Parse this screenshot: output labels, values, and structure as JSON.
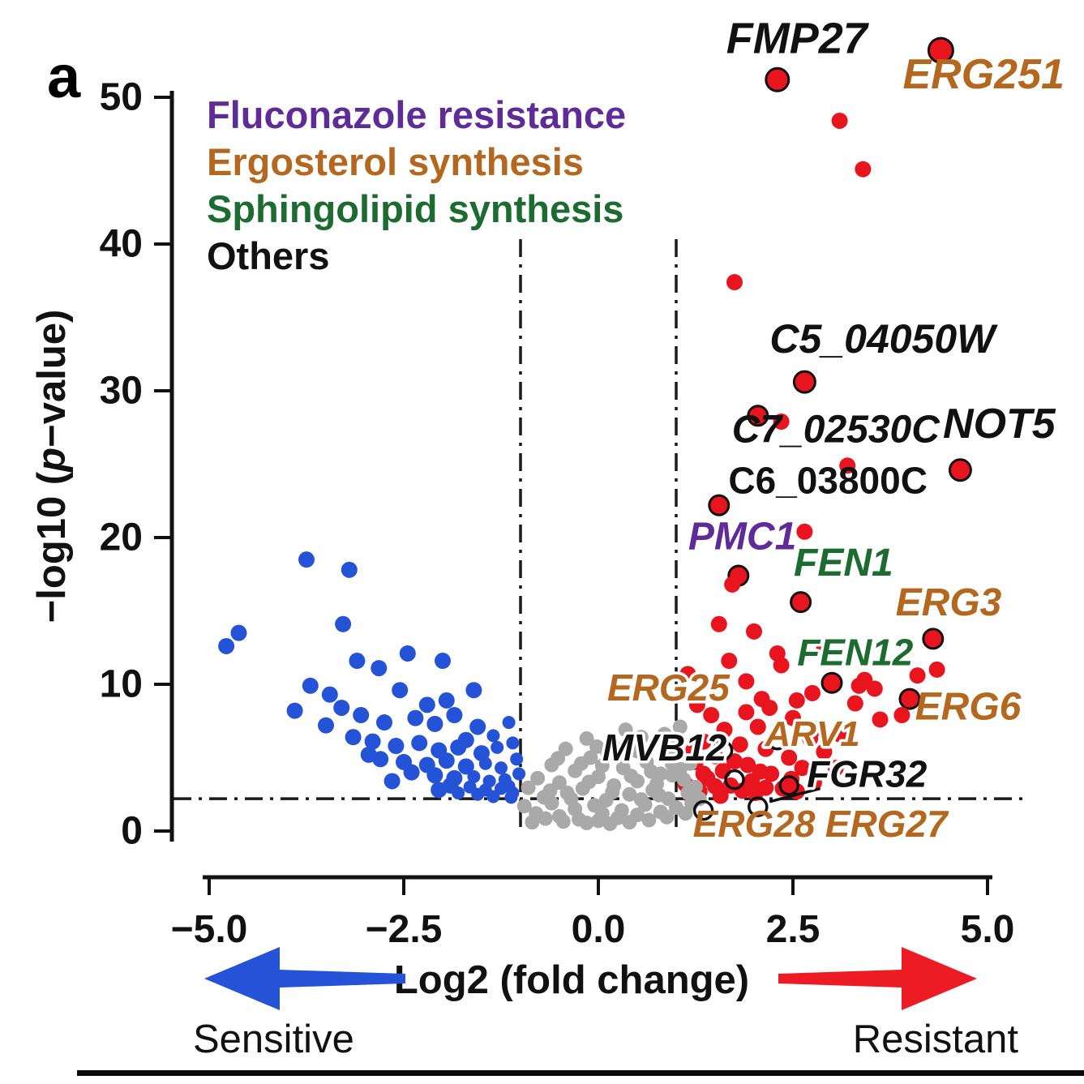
{
  "page": {
    "panel_label": "a"
  },
  "chart_data": {
    "type": "scatter",
    "variant": "volcano",
    "title": "",
    "xlabel": "Log2 (fold change)",
    "ylabel": {
      "prefix": "−log10 (",
      "italic": "p",
      "suffix": "−value)"
    },
    "xlim": [
      -5.5,
      5.5
    ],
    "ylim": [
      -1,
      54
    ],
    "grid": false,
    "x_ticks": [
      {
        "value": -5,
        "label": "−5.0"
      },
      {
        "value": -2.5,
        "label": "−2.5"
      },
      {
        "value": 0,
        "label": "0.0"
      },
      {
        "value": 2.5,
        "label": "2.5"
      },
      {
        "value": 5,
        "label": "5.0"
      }
    ],
    "y_ticks": [
      {
        "value": 0,
        "label": "0"
      },
      {
        "value": 10,
        "label": "10"
      },
      {
        "value": 20,
        "label": "20"
      },
      {
        "value": 30,
        "label": "30"
      },
      {
        "value": 40,
        "label": "40"
      },
      {
        "value": 50,
        "label": "50"
      }
    ],
    "thresholds": {
      "x": [
        -1,
        1
      ],
      "y": 2.2
    },
    "legend": [
      {
        "label": "Fluconazole resistance",
        "color": "#5e2b97"
      },
      {
        "label": "Ergosterol synthesis",
        "color": "#b4671e"
      },
      {
        "label": "Sphingolipid synthesis",
        "color": "#1c6b30"
      },
      {
        "label": "Others",
        "color": "#111111"
      }
    ],
    "series": [
      {
        "name": "resistant",
        "color": "#e8141e",
        "points": [
          [
            4.4,
            53.2,
            15,
            1
          ],
          [
            2.3,
            51.2,
            14,
            1
          ],
          [
            3.1,
            48.4
          ],
          [
            3.4,
            45.1
          ],
          [
            1.75,
            37.4
          ],
          [
            2.65,
            30.6,
            13,
            1
          ],
          [
            2.05,
            28.3,
            12,
            1
          ],
          [
            2.35,
            27.9
          ],
          [
            3.2,
            24.9
          ],
          [
            4.65,
            24.6,
            13,
            1
          ],
          [
            1.55,
            22.2,
            12,
            1
          ],
          [
            2.65,
            20.4
          ],
          [
            1.8,
            17.4,
            12,
            1
          ],
          [
            1.72,
            16.8
          ],
          [
            2.6,
            15.6,
            12,
            1
          ],
          [
            1.55,
            14.1
          ],
          [
            2.0,
            13.6
          ],
          [
            4.3,
            13.1,
            12,
            1
          ],
          [
            2.3,
            12.1
          ],
          [
            2.35,
            11.3
          ],
          [
            4.35,
            11.0
          ],
          [
            1.15,
            10.7
          ],
          [
            3.0,
            10.1,
            12,
            1
          ],
          [
            3.42,
            10.3
          ],
          [
            3.55,
            9.7
          ],
          [
            4.0,
            9.0,
            12,
            1
          ],
          [
            3.3,
            8.7
          ],
          [
            2.1,
            9.0
          ],
          [
            2.2,
            8.4
          ],
          [
            1.9,
            8.1
          ],
          [
            2.5,
            7.7
          ],
          [
            3.62,
            7.6
          ],
          [
            2.05,
            7.1
          ],
          [
            1.62,
            6.9
          ],
          [
            2.32,
            6.6
          ],
          [
            2.72,
            6.3
          ],
          [
            1.35,
            6.1
          ],
          [
            1.82,
            5.9
          ],
          [
            2.15,
            5.6
          ],
          [
            2.9,
            5.4
          ],
          [
            1.5,
            5.1
          ],
          [
            2.45,
            5.0
          ],
          [
            1.25,
            4.7
          ],
          [
            1.92,
            4.5
          ],
          [
            2.62,
            4.3
          ],
          [
            1.6,
            4.1
          ],
          [
            2.22,
            3.9
          ],
          [
            1.4,
            3.6
          ],
          [
            1.97,
            3.4
          ],
          [
            2.77,
            3.3
          ],
          [
            1.7,
            3.1
          ],
          [
            2.37,
            2.9
          ],
          [
            1.3,
            2.7
          ],
          [
            2.02,
            2.6
          ],
          [
            1.57,
            2.4
          ],
          [
            1.45,
            7.9
          ],
          [
            1.27,
            8.6
          ],
          [
            2.85,
            7.0
          ],
          [
            3.1,
            6.6
          ],
          [
            2.55,
            8.9
          ],
          [
            2.75,
            9.4
          ],
          [
            1.9,
            10.2
          ],
          [
            1.68,
            11.6
          ],
          [
            2.9,
            12.6
          ],
          [
            1.5,
            3.05
          ],
          [
            1.35,
            3.9
          ],
          [
            1.85,
            2.75
          ],
          [
            2.55,
            2.7
          ],
          [
            2.15,
            2.95
          ],
          [
            1.22,
            5.5
          ],
          [
            1.12,
            3.2
          ],
          [
            1.18,
            2.45
          ],
          [
            2.08,
            4.05
          ],
          [
            2.48,
            3.55
          ],
          [
            1.75,
            4.75
          ],
          [
            3.05,
            4.3
          ],
          [
            3.35,
            9.9
          ],
          [
            4.1,
            10.6
          ],
          [
            3.9,
            7.9
          ]
        ]
      },
      {
        "name": "sensitive",
        "color": "#2553d8",
        "points": [
          [
            -3.75,
            18.5
          ],
          [
            -3.2,
            17.8
          ],
          [
            -4.62,
            13.5
          ],
          [
            -4.78,
            12.6
          ],
          [
            -3.28,
            14.1
          ],
          [
            -3.1,
            11.6
          ],
          [
            -2.82,
            11.1
          ],
          [
            -2.45,
            12.1
          ],
          [
            -2.0,
            11.6
          ],
          [
            -3.7,
            9.9
          ],
          [
            -3.45,
            9.3
          ],
          [
            -2.55,
            9.6
          ],
          [
            -1.6,
            9.6
          ],
          [
            -3.3,
            8.4
          ],
          [
            -3.05,
            7.9
          ],
          [
            -2.75,
            7.4
          ],
          [
            -2.35,
            7.7
          ],
          [
            -2.1,
            7.3
          ],
          [
            -1.85,
            7.9
          ],
          [
            -1.55,
            7.1
          ],
          [
            -1.15,
            7.4,
            8
          ],
          [
            -3.15,
            6.4
          ],
          [
            -2.9,
            6.1
          ],
          [
            -2.6,
            5.8
          ],
          [
            -2.3,
            6.0
          ],
          [
            -2.05,
            5.5
          ],
          [
            -1.8,
            5.7
          ],
          [
            -1.5,
            5.3
          ],
          [
            -1.3,
            5.7,
            8
          ],
          [
            -1.1,
            6.0,
            8
          ],
          [
            -2.8,
            4.9
          ],
          [
            -2.5,
            4.7
          ],
          [
            -2.2,
            4.5
          ],
          [
            -1.95,
            4.8
          ],
          [
            -1.7,
            4.4
          ],
          [
            -1.45,
            4.6,
            8
          ],
          [
            -1.25,
            4.3,
            8
          ],
          [
            -2.4,
            4.0
          ],
          [
            -2.1,
            3.8
          ],
          [
            -1.85,
            3.6
          ],
          [
            -1.6,
            3.7,
            8
          ],
          [
            -1.4,
            3.4,
            8
          ],
          [
            -1.2,
            3.5,
            8
          ],
          [
            -1.9,
            3.1
          ],
          [
            -1.65,
            3.0,
            8
          ],
          [
            -1.45,
            2.8,
            8
          ],
          [
            -1.25,
            2.9,
            8
          ],
          [
            -1.1,
            2.6,
            8
          ],
          [
            -2.65,
            3.4
          ],
          [
            -2.95,
            5.2
          ],
          [
            -3.5,
            7.2
          ],
          [
            -3.9,
            8.2
          ],
          [
            -1.35,
            6.5,
            8
          ],
          [
            -1.7,
            6.2
          ],
          [
            -2.2,
            8.6
          ],
          [
            -1.95,
            8.9
          ],
          [
            -1.05,
            4.9,
            8
          ],
          [
            -1.02,
            3.9,
            8
          ],
          [
            -1.15,
            3.05,
            8
          ],
          [
            -1.55,
            2.5,
            8
          ],
          [
            -1.8,
            2.6,
            8
          ],
          [
            -2.05,
            2.8
          ],
          [
            -1.35,
            2.35,
            8
          ],
          [
            -1.12,
            2.3,
            8
          ]
        ]
      },
      {
        "name": "nonsignificant",
        "color": "#a9a9a9",
        "points": [
          [
            0,
            0.7,
            9
          ],
          [
            0.25,
            0.9,
            9
          ],
          [
            -0.25,
            0.8,
            9
          ],
          [
            0.5,
            1.1,
            9
          ],
          [
            -0.5,
            1.0,
            9
          ],
          [
            0.8,
            1.3,
            9
          ],
          [
            -0.8,
            1.2,
            9
          ],
          [
            1.0,
            1.6,
            9
          ],
          [
            -0.95,
            1.7,
            9
          ],
          [
            0.3,
            1.4,
            9
          ],
          [
            -0.3,
            1.5,
            9
          ],
          [
            0.6,
            1.8,
            9
          ],
          [
            -0.6,
            1.9,
            9
          ],
          [
            0.1,
            2.1,
            9
          ],
          [
            0.9,
            2.2,
            9
          ],
          [
            -0.7,
            2.3,
            9
          ],
          [
            0.4,
            2.5,
            9
          ],
          [
            -0.4,
            2.6,
            9
          ],
          [
            0.7,
            2.8,
            9
          ],
          [
            -0.2,
            2.9,
            9
          ],
          [
            0.2,
            3.1,
            9
          ],
          [
            -0.5,
            3.3,
            9
          ],
          [
            0.5,
            3.4,
            9
          ],
          [
            -0.78,
            3.6,
            9
          ],
          [
            0.0,
            3.7,
            9
          ],
          [
            0.8,
            3.9,
            9
          ],
          [
            -0.3,
            4.1,
            9
          ],
          [
            0.32,
            4.3,
            9
          ],
          [
            -0.6,
            4.5,
            9
          ],
          [
            0.62,
            4.7,
            9
          ],
          [
            -0.1,
            5.0,
            9
          ],
          [
            0.12,
            5.3,
            9
          ],
          [
            -0.42,
            5.6,
            9
          ],
          [
            0.45,
            5.9,
            9
          ],
          [
            -0.15,
            6.3,
            9
          ],
          [
            0.9,
            5.1,
            9
          ],
          [
            1.05,
            4.2,
            9
          ],
          [
            1.1,
            3.5,
            9
          ],
          [
            -0.9,
            2.95,
            9
          ],
          [
            0.75,
            3.2,
            9
          ],
          [
            1.15,
            2.6,
            9
          ],
          [
            1.2,
            1.9,
            9
          ],
          [
            0.95,
            3.8,
            9
          ],
          [
            1.0,
            6.0,
            9
          ],
          [
            0.85,
            6.6,
            9
          ],
          [
            1.05,
            7.1,
            9
          ],
          [
            0.55,
            6.4,
            9
          ],
          [
            0.35,
            6.9,
            9
          ],
          [
            0.15,
            0.5,
            9
          ],
          [
            -0.15,
            0.55,
            9
          ],
          [
            0.4,
            0.6,
            9
          ],
          [
            -0.45,
            0.65,
            9
          ],
          [
            0.65,
            0.75,
            9
          ],
          [
            -0.68,
            0.85,
            9
          ],
          [
            0.88,
            0.95,
            9
          ],
          [
            1.12,
            1.2,
            9
          ],
          [
            -0.85,
            0.6,
            9
          ],
          [
            0.05,
            1.2,
            9
          ],
          [
            -0.05,
            1.75,
            9
          ],
          [
            0.55,
            2.15,
            9
          ],
          [
            -0.62,
            2.75,
            9
          ],
          [
            0.78,
            2.45,
            9
          ],
          [
            -0.35,
            2.2,
            9
          ],
          [
            0.18,
            2.65,
            9
          ],
          [
            -0.12,
            3.35,
            9
          ],
          [
            0.42,
            3.75,
            9
          ],
          [
            -0.22,
            4.6,
            9
          ],
          [
            0.05,
            4.45,
            9
          ],
          [
            0.68,
            4.05,
            9
          ],
          [
            -0.52,
            4.95,
            9
          ],
          [
            0.28,
            5.55,
            9
          ],
          [
            -0.02,
            5.75,
            9
          ],
          [
            0.5,
            5.45,
            9
          ],
          [
            1.25,
            3.0,
            9
          ],
          [
            1.3,
            2.2,
            9
          ],
          [
            1.18,
            4.6,
            9
          ],
          [
            0.95,
            4.55,
            9
          ]
        ]
      }
    ],
    "open_points": [
      [
        1.6,
        5.5
      ],
      [
        1.75,
        3.5
      ],
      [
        2.05,
        1.65
      ],
      [
        2.3,
        6.2
      ],
      [
        1.35,
        1.4
      ],
      [
        2.45,
        3.1
      ]
    ],
    "leader_line": {
      "from": [
        2.2,
        2.0
      ],
      "to": [
        2.85,
        2.9
      ]
    },
    "gene_labels": [
      {
        "text": "FMP27",
        "x": 2.55,
        "y": 53.0,
        "color": "#111111",
        "size": 54
      },
      {
        "text": "ERG251",
        "x": 4.95,
        "y": 50.6,
        "color": "#b4671e",
        "size": 52
      },
      {
        "text": "C5_04050W",
        "x": 3.65,
        "y": 32.6,
        "color": "#111111",
        "size": 50
      },
      {
        "text": "C7_02530C",
        "x": 3.05,
        "y": 26.5,
        "color": "#111111",
        "size": 48
      },
      {
        "text": "NOT5",
        "x": 5.15,
        "y": 26.8,
        "color": "#111111",
        "size": 52
      },
      {
        "text": "C6_03800C",
        "x": 2.95,
        "y": 23.0,
        "color": "#111111",
        "size": 46,
        "italic": false
      },
      {
        "text": "PMC1",
        "x": 1.85,
        "y": 19.2,
        "color": "#5e2b97",
        "size": 48
      },
      {
        "text": "FEN1",
        "x": 3.15,
        "y": 17.4,
        "color": "#1c6b30",
        "size": 48
      },
      {
        "text": "ERG3",
        "x": 4.5,
        "y": 14.7,
        "color": "#b4671e",
        "size": 48
      },
      {
        "text": "FEN12",
        "x": 3.3,
        "y": 11.3,
        "color": "#1c6b30",
        "size": 46,
        "halo": true
      },
      {
        "text": "ERG25",
        "x": 0.9,
        "y": 8.9,
        "color": "#b4671e",
        "size": 46,
        "halo": true
      },
      {
        "text": "ERG6",
        "x": 4.75,
        "y": 7.6,
        "color": "#b4671e",
        "size": 48
      },
      {
        "text": "ARV1",
        "x": 2.75,
        "y": 5.8,
        "color": "#b4671e",
        "size": 44,
        "halo": true
      },
      {
        "text": "MVB12",
        "x": 0.85,
        "y": 4.8,
        "color": "#111111",
        "size": 46,
        "halo": true
      },
      {
        "text": "FGR32",
        "x": 3.45,
        "y": 3.0,
        "color": "#111111",
        "size": 46,
        "halo": true
      },
      {
        "text": "ERG28",
        "x": 2.0,
        "y": -0.4,
        "color": "#b4671e",
        "size": 46
      },
      {
        "text": "ERG27",
        "x": 3.7,
        "y": -0.4,
        "color": "#b4671e",
        "size": 46
      }
    ],
    "arrows": {
      "sensitive_label": "Sensitive",
      "resistant_label": "Resistant",
      "blue": "#2553d8",
      "red": "#ed1c24"
    }
  }
}
